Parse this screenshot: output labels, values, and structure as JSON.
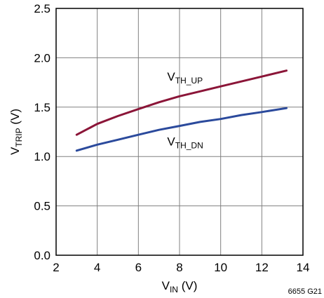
{
  "chart_data": {
    "type": "line",
    "xlabel": {
      "main": "V",
      "sub": "IN",
      "suffix": " (V)"
    },
    "ylabel": {
      "main": "V",
      "sub": "TRIP",
      "suffix": " (V)"
    },
    "xlim": [
      2,
      14
    ],
    "ylim": [
      0,
      2.5
    ],
    "x_ticks": [
      "2",
      "4",
      "6",
      "8",
      "10",
      "12",
      "14"
    ],
    "y_ticks": [
      "0.0",
      "0.5",
      "1.0",
      "1.5",
      "2.0",
      "2.5"
    ],
    "grid": true,
    "series": [
      {
        "name": "V_TH_UP",
        "label": {
          "main": "V",
          "sub": "TH_UP"
        },
        "color": "#8b1538",
        "x": [
          3,
          4,
          5,
          6,
          7,
          8,
          9,
          10,
          11,
          12,
          13.2
        ],
        "y": [
          1.22,
          1.33,
          1.41,
          1.48,
          1.55,
          1.61,
          1.66,
          1.71,
          1.76,
          1.81,
          1.87
        ]
      },
      {
        "name": "V_TH_DN",
        "label": {
          "main": "V",
          "sub": "TH_DN"
        },
        "color": "#2b4a9c",
        "x": [
          3,
          4,
          5,
          6,
          7,
          8,
          9,
          10,
          11,
          12,
          13.2
        ],
        "y": [
          1.06,
          1.12,
          1.17,
          1.22,
          1.27,
          1.31,
          1.35,
          1.38,
          1.42,
          1.45,
          1.49
        ]
      }
    ],
    "footnote": "6655 G21"
  }
}
